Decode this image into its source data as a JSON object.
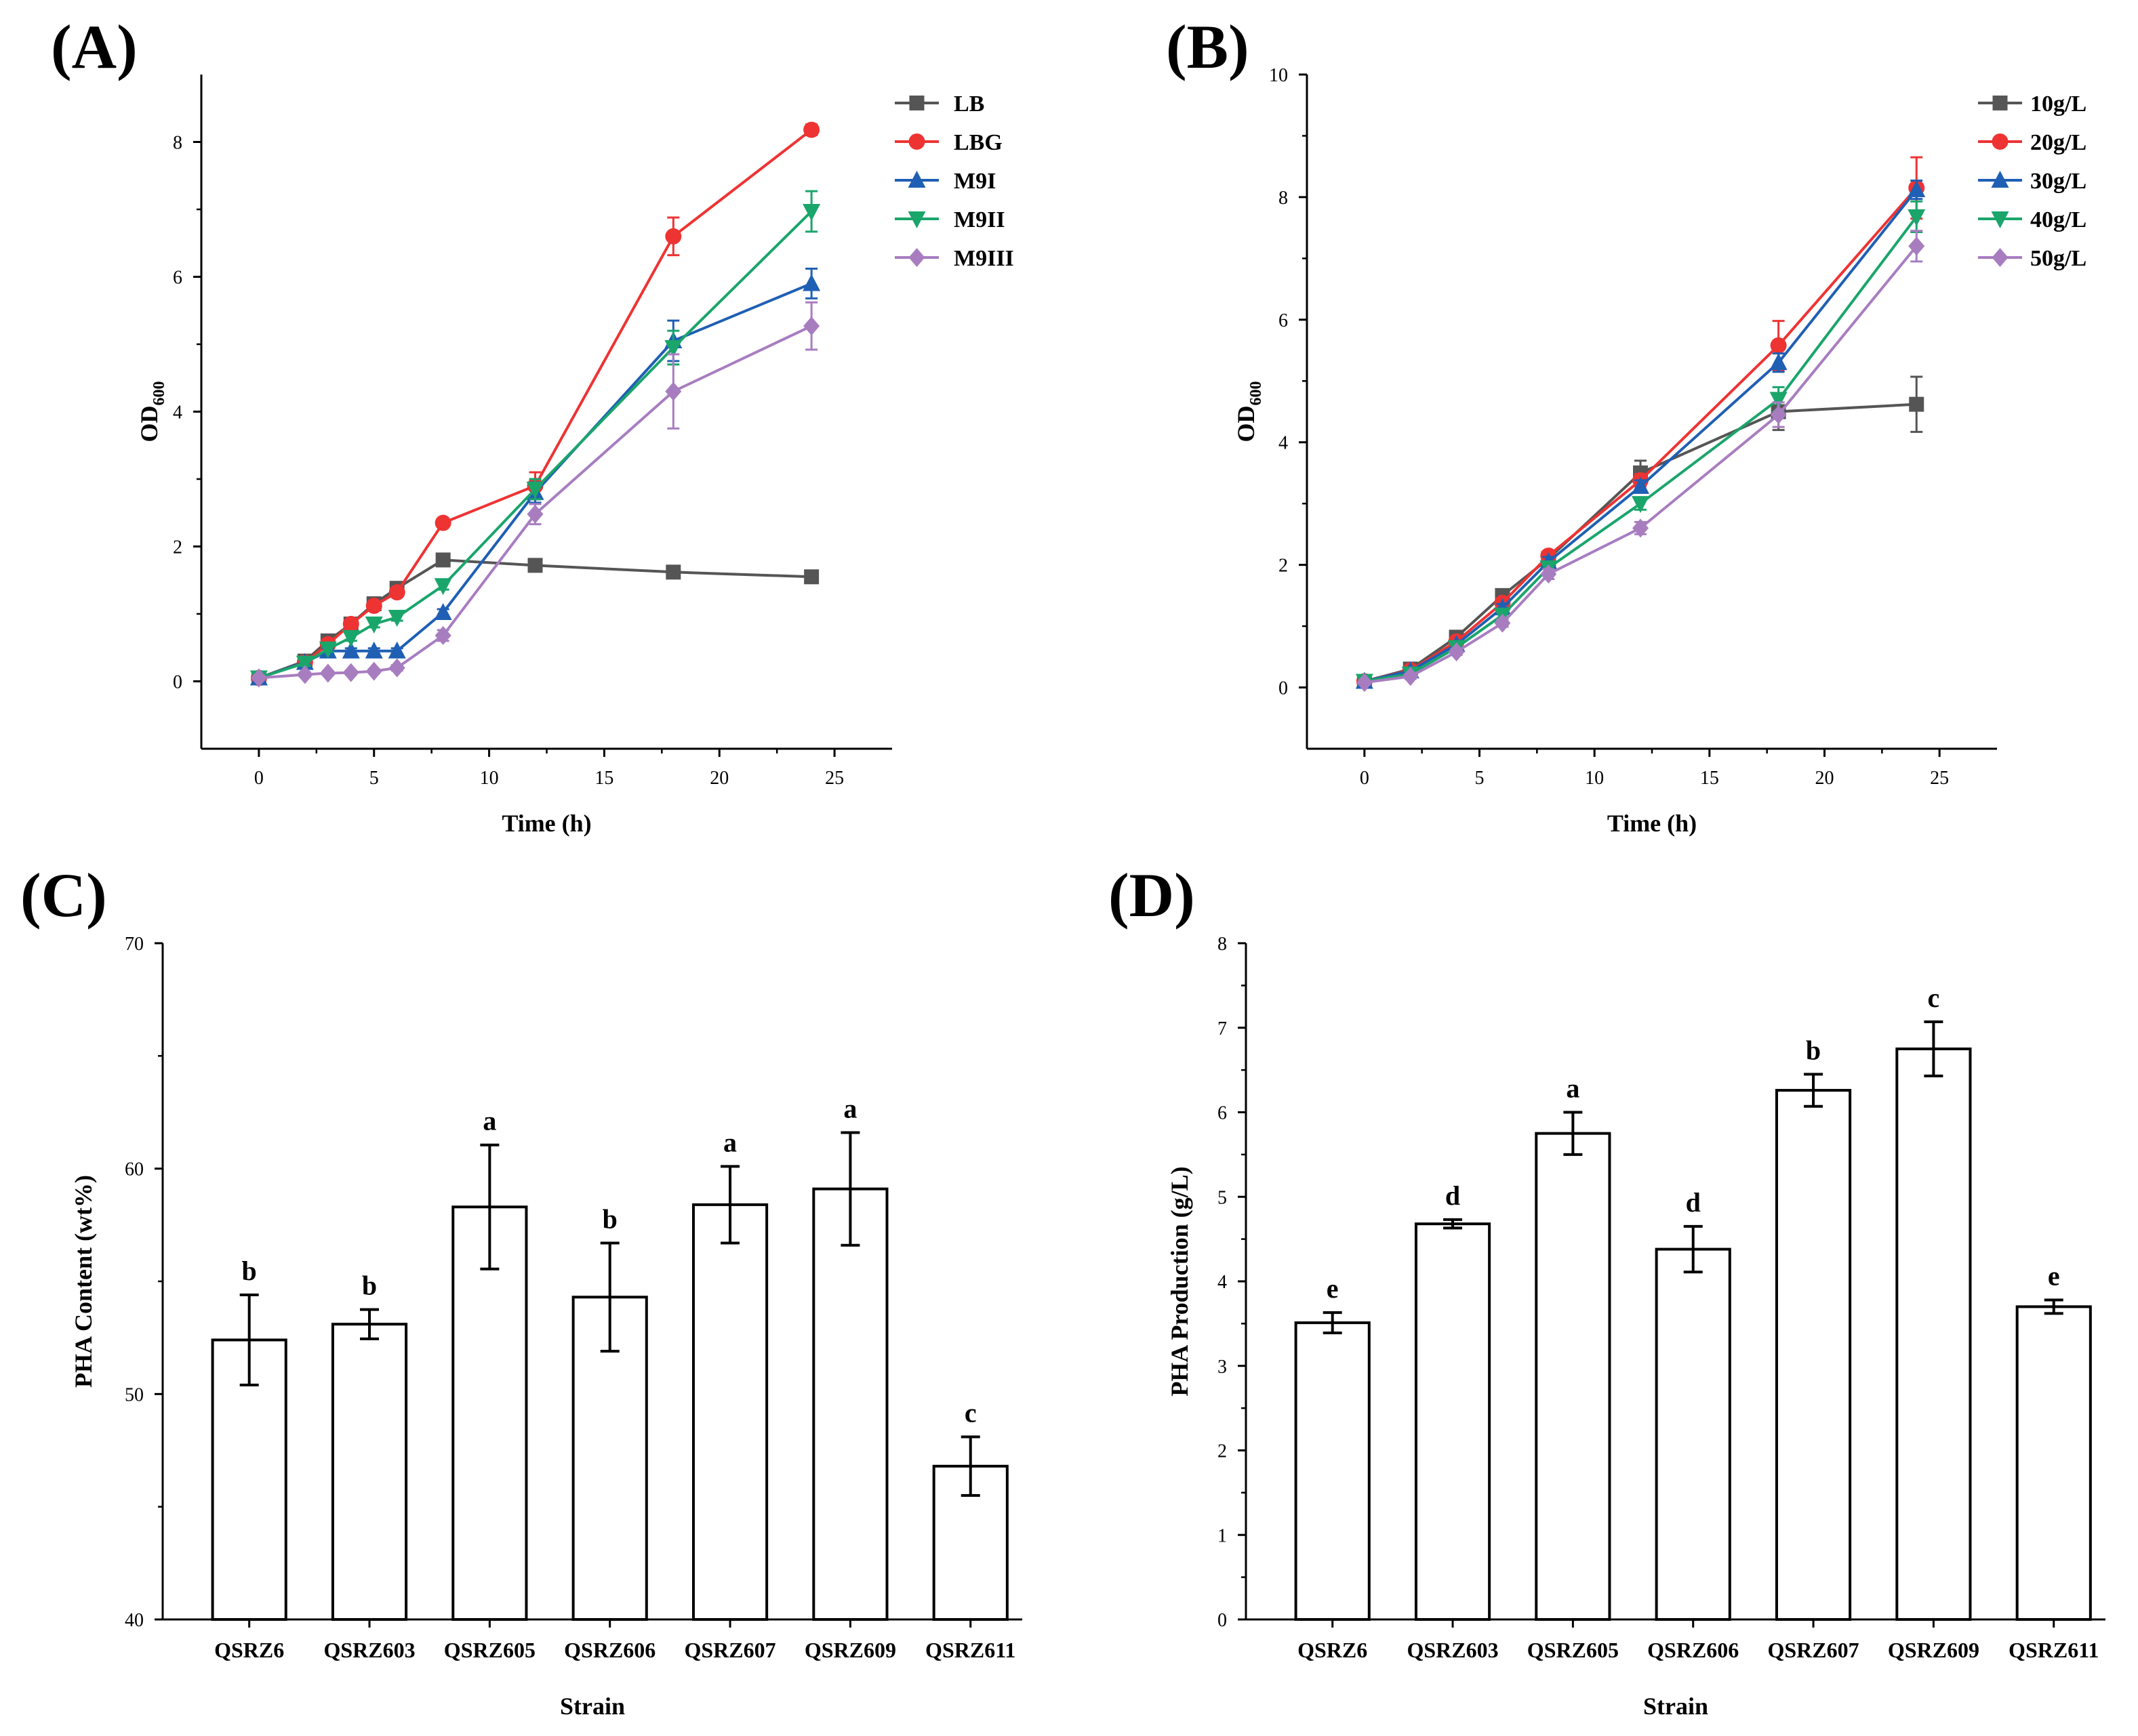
{
  "chart_data": [
    {
      "type": "line",
      "panel_label": "(A)",
      "title": "",
      "xlabel": "Time (h)",
      "ylabel": "OD",
      "ylabel_sub": "600",
      "xlim": [
        -2.5,
        27.5
      ],
      "ylim": [
        -1,
        9
      ],
      "xticks": [
        0,
        5,
        10,
        15,
        20,
        25
      ],
      "yticks": [
        0,
        2,
        4,
        6,
        8
      ],
      "legend_position": "top-right",
      "series": [
        {
          "name": "LB",
          "color": "#555555",
          "marker": "square",
          "x": [
            0,
            2,
            3,
            4,
            5,
            6,
            8,
            12,
            18,
            24
          ],
          "y": [
            0.05,
            0.3,
            0.6,
            0.85,
            1.15,
            1.38,
            1.8,
            1.72,
            1.62,
            1.55
          ],
          "err": [
            0.03,
            0.04,
            0.05,
            0.05,
            0.05,
            0.05,
            0.05,
            0.05,
            0.05,
            0.05
          ]
        },
        {
          "name": "LBG",
          "color": "#ee3333",
          "marker": "circle",
          "x": [
            0,
            2,
            3,
            4,
            5,
            6,
            8,
            12,
            18,
            24
          ],
          "y": [
            0.05,
            0.28,
            0.55,
            0.85,
            1.12,
            1.32,
            2.35,
            2.9,
            6.6,
            8.18
          ],
          "err": [
            0.03,
            0.04,
            0.05,
            0.05,
            0.05,
            0.05,
            0.06,
            0.2,
            0.28,
            0.08
          ]
        },
        {
          "name": "M9I",
          "color": "#1f5fb4",
          "marker": "triangle-up",
          "x": [
            0,
            2,
            3,
            4,
            5,
            6,
            8,
            12,
            18,
            24
          ],
          "y": [
            0.05,
            0.28,
            0.45,
            0.45,
            0.45,
            0.45,
            1.02,
            2.8,
            5.05,
            5.9
          ],
          "err": [
            0.03,
            0.04,
            0.04,
            0.04,
            0.04,
            0.04,
            0.05,
            0.15,
            0.3,
            0.22
          ]
        },
        {
          "name": "M9II",
          "color": "#1aa56b",
          "marker": "triangle-down",
          "x": [
            0,
            2,
            3,
            4,
            5,
            6,
            8,
            12,
            18,
            24
          ],
          "y": [
            0.05,
            0.27,
            0.48,
            0.65,
            0.85,
            0.95,
            1.42,
            2.85,
            4.95,
            6.97
          ],
          "err": [
            0.03,
            0.04,
            0.04,
            0.05,
            0.05,
            0.05,
            0.06,
            0.15,
            0.25,
            0.3
          ]
        },
        {
          "name": "M9III",
          "color": "#a87dc0",
          "marker": "diamond",
          "x": [
            0,
            2,
            3,
            4,
            5,
            6,
            8,
            12,
            18,
            24
          ],
          "y": [
            0.05,
            0.1,
            0.12,
            0.13,
            0.15,
            0.2,
            0.68,
            2.48,
            4.3,
            5.27
          ],
          "err": [
            0.03,
            0.03,
            0.03,
            0.03,
            0.03,
            0.04,
            0.08,
            0.15,
            0.55,
            0.35
          ]
        }
      ]
    },
    {
      "type": "line",
      "panel_label": "(B)",
      "title": "",
      "xlabel": "Time (h)",
      "ylabel": "OD",
      "ylabel_sub": "600",
      "xlim": [
        -2.5,
        27.5
      ],
      "ylim": [
        -1,
        10
      ],
      "xticks": [
        0,
        5,
        10,
        15,
        20,
        25
      ],
      "yticks": [
        0,
        2,
        4,
        6,
        8,
        10
      ],
      "legend_position": "top-right",
      "series": [
        {
          "name": "10g/L",
          "color": "#555555",
          "marker": "square",
          "x": [
            0,
            2,
            4,
            6,
            8,
            12,
            18,
            24
          ],
          "y": [
            0.1,
            0.3,
            0.82,
            1.5,
            2.1,
            3.5,
            4.5,
            4.62
          ],
          "err": [
            0.03,
            0.04,
            0.05,
            0.06,
            0.08,
            0.2,
            0.3,
            0.45
          ]
        },
        {
          "name": "20g/L",
          "color": "#ee3333",
          "marker": "circle",
          "x": [
            0,
            2,
            4,
            6,
            8,
            12,
            18,
            24
          ],
          "y": [
            0.1,
            0.28,
            0.75,
            1.38,
            2.15,
            3.38,
            5.58,
            8.15
          ],
          "err": [
            0.03,
            0.04,
            0.05,
            0.06,
            0.08,
            0.1,
            0.4,
            0.5
          ]
        },
        {
          "name": "30g/L",
          "color": "#1f5fb4",
          "marker": "triangle-up",
          "x": [
            0,
            2,
            4,
            6,
            8,
            12,
            18,
            24
          ],
          "y": [
            0.1,
            0.27,
            0.7,
            1.3,
            2.05,
            3.28,
            5.3,
            8.12
          ],
          "err": [
            0.03,
            0.04,
            0.05,
            0.06,
            0.08,
            0.1,
            0.15,
            0.15
          ]
        },
        {
          "name": "40g/L",
          "color": "#1aa56b",
          "marker": "triangle-down",
          "x": [
            0,
            2,
            4,
            6,
            8,
            12,
            18,
            24
          ],
          "y": [
            0.1,
            0.22,
            0.65,
            1.18,
            1.95,
            3.0,
            4.7,
            7.68
          ],
          "err": [
            0.03,
            0.04,
            0.05,
            0.06,
            0.08,
            0.1,
            0.2,
            0.25
          ]
        },
        {
          "name": "50g/L",
          "color": "#a87dc0",
          "marker": "diamond",
          "x": [
            0,
            2,
            4,
            6,
            8,
            12,
            18,
            24
          ],
          "y": [
            0.08,
            0.18,
            0.58,
            1.05,
            1.85,
            2.6,
            4.45,
            7.2
          ],
          "err": [
            0.03,
            0.04,
            0.05,
            0.06,
            0.08,
            0.1,
            0.2,
            0.25
          ]
        }
      ]
    },
    {
      "type": "bar",
      "panel_label": "(C)",
      "title": "",
      "xlabel": "Strain",
      "ylabel": "PHA Content (wt%)",
      "ylim": [
        40,
        70
      ],
      "yticks": [
        40,
        50,
        60,
        70
      ],
      "categories": [
        "QSRZ6",
        "QSRZ603",
        "QSRZ605",
        "QSRZ606",
        "QSRZ607",
        "QSRZ609",
        "QSRZ611"
      ],
      "values": [
        52.4,
        53.1,
        58.3,
        54.3,
        58.4,
        59.1,
        46.8
      ],
      "errors": [
        2.0,
        0.65,
        2.75,
        2.4,
        1.7,
        2.5,
        1.3
      ],
      "significance": [
        "b",
        "b",
        "a",
        "b",
        "a",
        "a",
        "c"
      ]
    },
    {
      "type": "bar",
      "panel_label": "(D)",
      "title": "",
      "xlabel": "Strain",
      "ylabel": "PHA Production (g/L)",
      "ylim": [
        0,
        8
      ],
      "yticks": [
        0,
        1,
        2,
        3,
        4,
        5,
        6,
        7,
        8
      ],
      "categories": [
        "QSRZ6",
        "QSRZ603",
        "QSRZ605",
        "QSRZ606",
        "QSRZ607",
        "QSRZ609",
        "QSRZ611"
      ],
      "values": [
        3.51,
        4.68,
        5.75,
        4.38,
        6.26,
        6.75,
        3.7
      ],
      "errors": [
        0.12,
        0.05,
        0.25,
        0.27,
        0.19,
        0.32,
        0.08
      ],
      "significance": [
        "e",
        "d",
        "a",
        "d",
        "b",
        "c",
        "e"
      ]
    }
  ]
}
